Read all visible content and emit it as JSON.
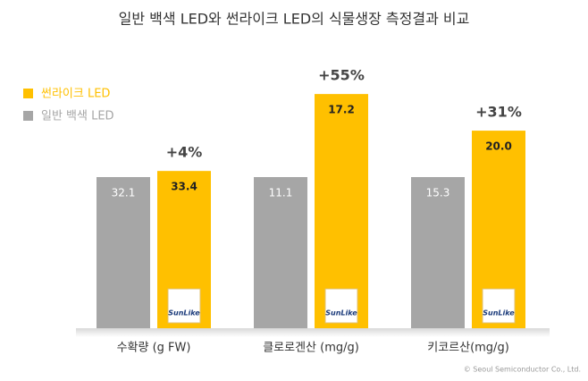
{
  "chart_data": {
    "type": "bar",
    "title": "일반 백색 LED와 썬라이크 LED의 식물생장 측정결과 비교",
    "categories": [
      "수확량 (g FW)",
      "클로로겐산 (mg/g)",
      "키코르산(mg/g)"
    ],
    "series": [
      {
        "name": "일반 백색 LED",
        "color": "#a6a6a6",
        "values": [
          32.1,
          11.1,
          15.3
        ]
      },
      {
        "name": "썬라이크 LED",
        "color": "#ffc000",
        "values": [
          33.4,
          17.2,
          20.0
        ],
        "value_labels": [
          "33.4",
          "17.2",
          "20.0"
        ]
      }
    ],
    "annotations": [
      "+4%",
      "+55%",
      "+31%"
    ],
    "logo_text": "SunLike",
    "footer": "© Seoul Semiconductor Co., Ltd."
  }
}
